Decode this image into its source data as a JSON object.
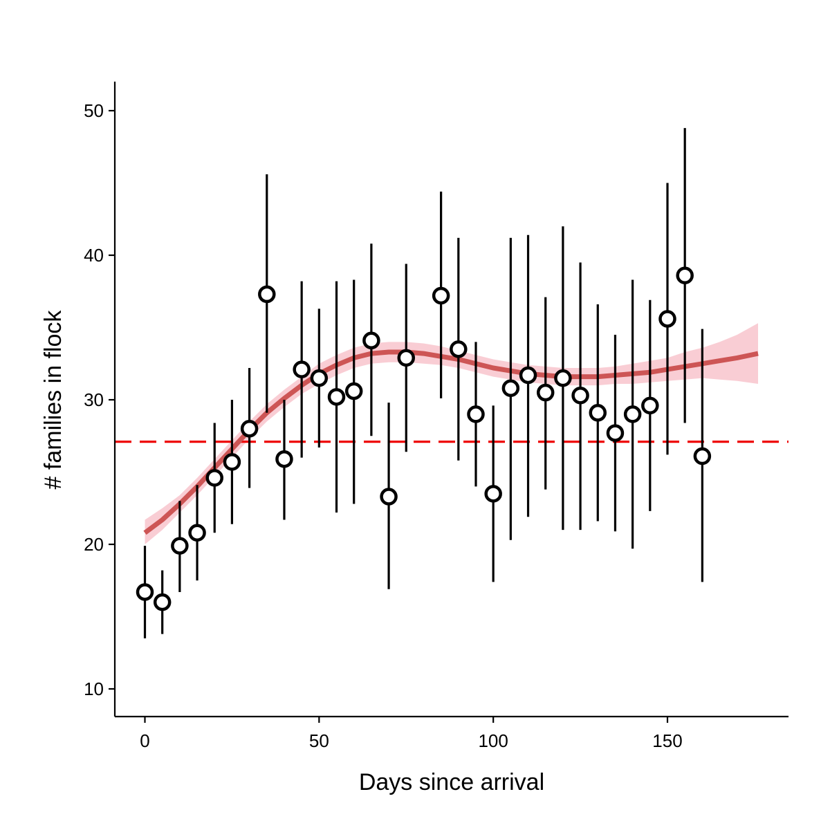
{
  "chart_data": {
    "type": "scatter",
    "xlabel": "Days since arrival",
    "ylabel": "# families in flock",
    "xlim": [
      -9,
      185
    ],
    "ylim": [
      8,
      52
    ],
    "x_ticks": [
      0,
      50,
      100,
      150
    ],
    "y_ticks": [
      10,
      20,
      30,
      40,
      50
    ],
    "grid": false,
    "colors": {
      "points_fill": "#ffffff",
      "points_stroke": "#000000",
      "errorbar": "#000000",
      "smooth_line": "#cd5555",
      "ribbon": "#f8c8cf",
      "reference_line": "#ee0000"
    },
    "reference_line": {
      "y": 27.1,
      "style": "dashed"
    },
    "points": [
      {
        "x": 0,
        "y": 16.7,
        "ymin": 13.5,
        "ymax": 19.9
      },
      {
        "x": 5,
        "y": 16.0,
        "ymin": 13.8,
        "ymax": 18.2
      },
      {
        "x": 10,
        "y": 19.9,
        "ymin": 16.7,
        "ymax": 23.0
      },
      {
        "x": 15,
        "y": 20.8,
        "ymin": 17.5,
        "ymax": 24.1
      },
      {
        "x": 20,
        "y": 24.6,
        "ymin": 20.8,
        "ymax": 28.4
      },
      {
        "x": 25,
        "y": 25.7,
        "ymin": 21.4,
        "ymax": 30.0
      },
      {
        "x": 30,
        "y": 28.0,
        "ymin": 23.9,
        "ymax": 32.2
      },
      {
        "x": 35,
        "y": 37.3,
        "ymin": 29.1,
        "ymax": 45.6
      },
      {
        "x": 40,
        "y": 25.9,
        "ymin": 21.7,
        "ymax": 30.0
      },
      {
        "x": 45,
        "y": 32.1,
        "ymin": 26.0,
        "ymax": 38.2
      },
      {
        "x": 50,
        "y": 31.5,
        "ymin": 26.7,
        "ymax": 36.3
      },
      {
        "x": 55,
        "y": 30.2,
        "ymin": 22.2,
        "ymax": 38.2
      },
      {
        "x": 60,
        "y": 30.6,
        "ymin": 22.8,
        "ymax": 38.3
      },
      {
        "x": 65,
        "y": 34.1,
        "ymin": 27.5,
        "ymax": 40.8
      },
      {
        "x": 70,
        "y": 23.3,
        "ymin": 16.9,
        "ymax": 29.8
      },
      {
        "x": 75,
        "y": 32.9,
        "ymin": 26.4,
        "ymax": 39.4
      },
      {
        "x": 85,
        "y": 37.2,
        "ymin": 30.1,
        "ymax": 44.4
      },
      {
        "x": 90,
        "y": 33.5,
        "ymin": 25.8,
        "ymax": 41.2
      },
      {
        "x": 95,
        "y": 29.0,
        "ymin": 24.0,
        "ymax": 34.0
      },
      {
        "x": 100,
        "y": 23.5,
        "ymin": 17.4,
        "ymax": 29.6
      },
      {
        "x": 105,
        "y": 30.8,
        "ymin": 20.3,
        "ymax": 41.2
      },
      {
        "x": 110,
        "y": 31.7,
        "ymin": 21.9,
        "ymax": 41.4
      },
      {
        "x": 115,
        "y": 30.5,
        "ymin": 23.8,
        "ymax": 37.1
      },
      {
        "x": 120,
        "y": 31.5,
        "ymin": 21.0,
        "ymax": 42.0
      },
      {
        "x": 125,
        "y": 30.3,
        "ymin": 21.0,
        "ymax": 39.5
      },
      {
        "x": 130,
        "y": 29.1,
        "ymin": 21.6,
        "ymax": 36.6
      },
      {
        "x": 135,
        "y": 27.7,
        "ymin": 20.9,
        "ymax": 34.5
      },
      {
        "x": 140,
        "y": 29.0,
        "ymin": 19.7,
        "ymax": 38.3
      },
      {
        "x": 145,
        "y": 29.6,
        "ymin": 22.3,
        "ymax": 36.9
      },
      {
        "x": 150,
        "y": 35.6,
        "ymin": 26.2,
        "ymax": 45.0
      },
      {
        "x": 155,
        "y": 38.6,
        "ymin": 28.4,
        "ymax": 48.8
      },
      {
        "x": 160,
        "y": 26.1,
        "ymin": 17.4,
        "ymax": 34.9
      }
    ],
    "smooth": {
      "x": [
        0,
        5,
        10,
        15,
        20,
        25,
        30,
        35,
        40,
        45,
        50,
        55,
        60,
        65,
        70,
        75,
        80,
        85,
        90,
        95,
        100,
        105,
        110,
        115,
        120,
        125,
        130,
        135,
        140,
        145,
        150,
        155,
        160,
        165,
        170,
        176
      ],
      "y": [
        20.8,
        21.7,
        22.8,
        24.0,
        25.3,
        26.6,
        27.9,
        29.1,
        30.1,
        31.0,
        31.8,
        32.4,
        32.9,
        33.2,
        33.3,
        33.3,
        33.2,
        33.0,
        32.8,
        32.5,
        32.2,
        32.0,
        31.8,
        31.7,
        31.6,
        31.6,
        31.6,
        31.7,
        31.8,
        31.9,
        32.1,
        32.3,
        32.5,
        32.7,
        32.9,
        33.2
      ],
      "lower": [
        20.0,
        21.0,
        22.2,
        23.4,
        24.7,
        26.0,
        27.3,
        28.5,
        29.5,
        30.4,
        31.1,
        31.7,
        32.2,
        32.5,
        32.6,
        32.6,
        32.5,
        32.4,
        32.2,
        31.9,
        31.6,
        31.4,
        31.2,
        31.1,
        31.0,
        31.0,
        31.0,
        31.1,
        31.1,
        31.2,
        31.3,
        31.4,
        31.5,
        31.4,
        31.3,
        31.1
      ],
      "upper": [
        21.7,
        22.5,
        23.4,
        24.6,
        25.9,
        27.2,
        28.5,
        29.7,
        30.7,
        31.6,
        32.5,
        33.1,
        33.6,
        33.9,
        34.0,
        34.0,
        33.9,
        33.7,
        33.4,
        33.1,
        32.8,
        32.6,
        32.4,
        32.3,
        32.2,
        32.2,
        32.2,
        32.3,
        32.5,
        32.7,
        32.9,
        33.3,
        33.6,
        34.0,
        34.5,
        35.3
      ]
    }
  }
}
